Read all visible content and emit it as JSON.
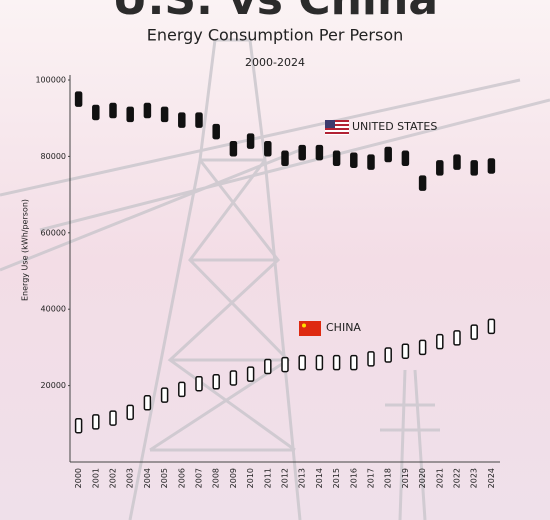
{
  "chart_data": {
    "type": "line",
    "title": "U.S. vs China",
    "subtitle": "Energy Consumption Per Person",
    "period": "2000-2024",
    "y_label": "Energy Use (kWh/person)",
    "categories": [
      "2000",
      "2001",
      "2002",
      "2003",
      "2004",
      "2005",
      "2006",
      "2007",
      "2008",
      "2009",
      "2010",
      "2011",
      "2012",
      "2013",
      "2014",
      "2015",
      "2016",
      "2017",
      "2018",
      "2019",
      "2020",
      "2021",
      "2022",
      "2023",
      "2024"
    ],
    "series": [
      {
        "name": "UNITED STATES",
        "color": "#111111",
        "values": [
          95000,
          91500,
          92000,
          91000,
          92000,
          91000,
          89500,
          89500,
          86500,
          82000,
          84000,
          82000,
          79500,
          81000,
          81000,
          79500,
          79000,
          78500,
          80500,
          79500,
          73000,
          77000,
          78500,
          77000,
          77500
        ]
      },
      {
        "name": "CHINA",
        "color": "#ffffff",
        "values": [
          9500,
          10500,
          11500,
          13000,
          15500,
          17500,
          19000,
          20500,
          21000,
          22000,
          23000,
          25000,
          25500,
          26000,
          26000,
          26000,
          26000,
          27000,
          28000,
          29000,
          30000,
          31500,
          32500,
          34000,
          35500
        ]
      }
    ],
    "ylim": [
      0,
      100000
    ],
    "yticks": [
      20000,
      40000,
      60000,
      80000,
      100000
    ]
  }
}
